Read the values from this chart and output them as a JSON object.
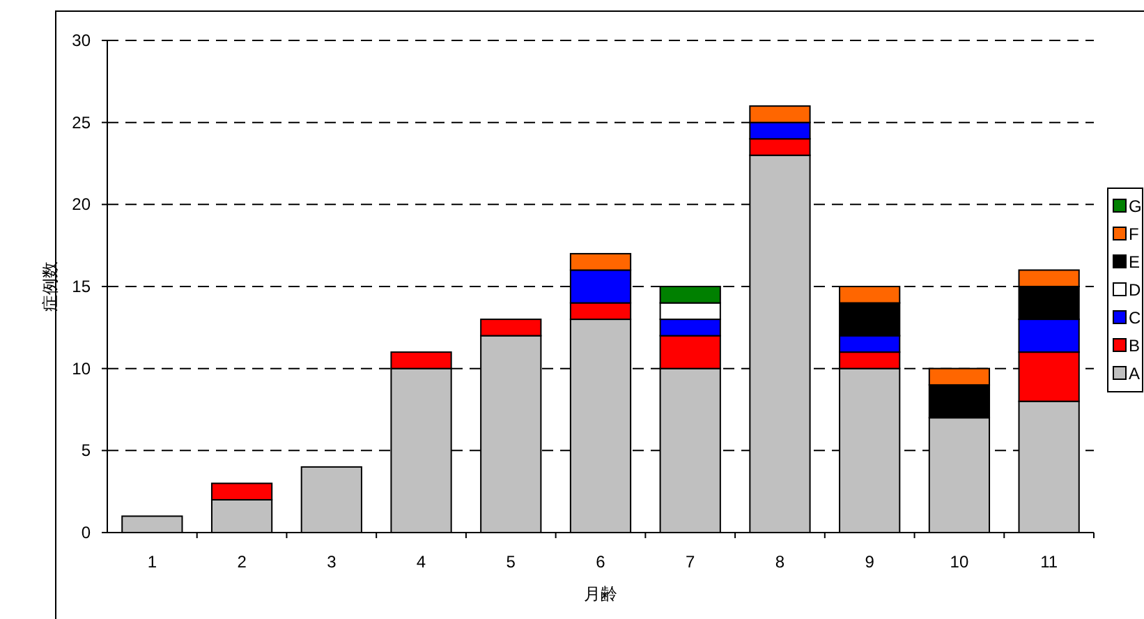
{
  "chart_data": {
    "type": "bar",
    "stacked": true,
    "xlabel": "月齢",
    "ylabel": "症例数",
    "categories": [
      "1",
      "2",
      "3",
      "4",
      "5",
      "6",
      "7",
      "8",
      "9",
      "10",
      "11"
    ],
    "ylim": [
      0,
      30
    ],
    "yticks": [
      0,
      5,
      10,
      15,
      20,
      25,
      30
    ],
    "grid": "y",
    "legend": "right",
    "series": [
      {
        "name": "A",
        "color": "#c0c0c0",
        "values": [
          1,
          2,
          4,
          10,
          12,
          13,
          10,
          23,
          10,
          7,
          8
        ]
      },
      {
        "name": "B",
        "color": "#ff0000",
        "values": [
          null,
          1,
          null,
          1,
          1,
          1,
          2,
          1,
          1,
          null,
          3
        ]
      },
      {
        "name": "C",
        "color": "#0000ff",
        "values": [
          null,
          null,
          null,
          null,
          null,
          2,
          1,
          1,
          1,
          null,
          2
        ]
      },
      {
        "name": "D",
        "color": "#ffffff",
        "values": [
          null,
          null,
          null,
          null,
          null,
          null,
          1,
          null,
          null,
          null,
          null
        ]
      },
      {
        "name": "E",
        "color": "#000000",
        "values": [
          null,
          null,
          null,
          null,
          null,
          null,
          null,
          null,
          2,
          2,
          2
        ]
      },
      {
        "name": "F",
        "color": "#ff6600",
        "values": [
          null,
          null,
          null,
          null,
          null,
          1,
          null,
          1,
          1,
          1,
          1
        ]
      },
      {
        "name": "G",
        "color": "#008000",
        "values": [
          null,
          null,
          null,
          null,
          null,
          null,
          1,
          null,
          null,
          null,
          null
        ]
      }
    ]
  }
}
